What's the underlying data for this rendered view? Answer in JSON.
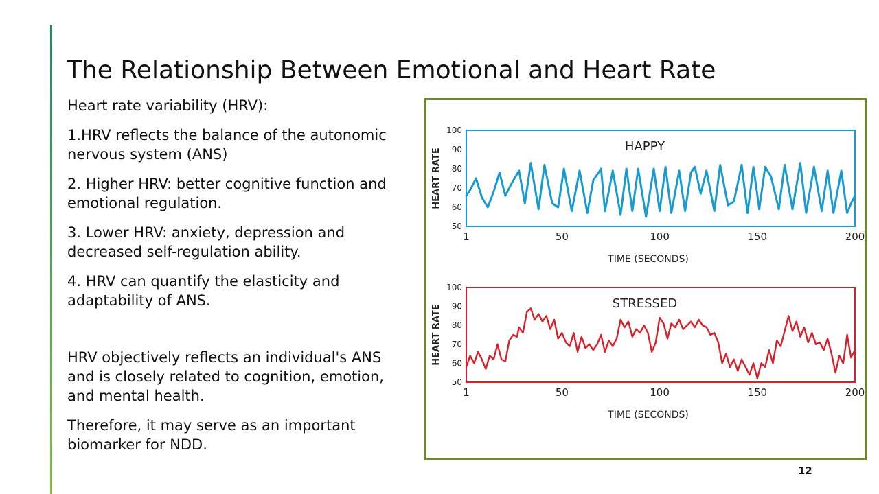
{
  "slide": {
    "title": "The Relationship Between Emotional and Heart Rate",
    "page_number": "12",
    "accent_colors": [
      "#1f8a6a",
      "#7fbf3a"
    ],
    "frame_color": "#6a8a2a"
  },
  "content": {
    "heading": "Heart rate variability (HRV):",
    "points": [
      "1.HRV reflects the balance of the autonomic nervous system (ANS)",
      "2. Higher HRV: better cognitive function and emotional regulation.",
      "3. Lower HRV: anxiety, depression and decreased self-regulation ability.",
      "4. HRV can quantify the elasticity and adaptability of ANS."
    ],
    "summary": [
      "HRV objectively reflects an individual's ANS and is closely related to cognition, emotion, and mental health.",
      "Therefore, it may serve as an important biomarker for NDD."
    ]
  },
  "chart_data": [
    {
      "type": "line",
      "title": "HAPPY",
      "xlabel": "TIME (SECONDS)",
      "ylabel": "HEART RATE",
      "xlim": [
        1,
        200
      ],
      "ylim": [
        50,
        100
      ],
      "xticks": [
        "1",
        "50",
        "100",
        "150",
        "200"
      ],
      "yticks": [
        "100",
        "90",
        "80",
        "70",
        "60",
        "50"
      ],
      "color": "#1a9bd0",
      "x": [
        1,
        3,
        6,
        9,
        12,
        15,
        18,
        21,
        24,
        28,
        31,
        34,
        38,
        41,
        45,
        48,
        51,
        55,
        59,
        63,
        66,
        70,
        72,
        76,
        80,
        83,
        86,
        89,
        93,
        97,
        100,
        103,
        106,
        110,
        113,
        116,
        118,
        121,
        124,
        128,
        131,
        135,
        138,
        142,
        145,
        148,
        151,
        154,
        157,
        161,
        164,
        168,
        172,
        175,
        179,
        183,
        186,
        189,
        193,
        196,
        198,
        200
      ],
      "y": [
        66,
        69,
        75,
        65,
        60,
        68,
        78,
        66,
        72,
        79,
        62,
        83,
        59,
        82,
        62,
        60,
        80,
        58,
        79,
        57,
        74,
        80,
        58,
        79,
        56,
        80,
        58,
        80,
        55,
        80,
        58,
        81,
        57,
        79,
        58,
        78,
        81,
        67,
        79,
        58,
        82,
        61,
        63,
        82,
        57,
        81,
        59,
        81,
        76,
        59,
        82,
        59,
        83,
        57,
        81,
        58,
        79,
        57,
        79,
        57,
        62,
        66
      ]
    },
    {
      "type": "line",
      "title": "STRESSED",
      "xlabel": "TIME (SECONDS)",
      "ylabel": "HEART RATE",
      "xlim": [
        1,
        200
      ],
      "ylim": [
        50,
        100
      ],
      "xticks": [
        "1",
        "50",
        "100",
        "150",
        "200"
      ],
      "yticks": [
        "100",
        "90",
        "80",
        "70",
        "60",
        "50"
      ],
      "color": "#d8202a",
      "x": [
        1,
        3,
        5,
        7,
        9,
        11,
        13,
        15,
        17,
        19,
        21,
        23,
        25,
        27,
        28,
        30,
        32,
        34,
        36,
        38,
        40,
        42,
        44,
        46,
        48,
        50,
        52,
        54,
        56,
        58,
        60,
        62,
        64,
        66,
        68,
        70,
        72,
        74,
        76,
        78,
        80,
        82,
        84,
        86,
        88,
        90,
        92,
        94,
        96,
        98,
        100,
        102,
        104,
        106,
        108,
        110,
        112,
        114,
        116,
        118,
        120,
        122,
        124,
        126,
        128,
        130,
        132,
        134,
        136,
        138,
        140,
        142,
        144,
        146,
        148,
        150,
        152,
        154,
        156,
        158,
        160,
        162,
        164,
        166,
        168,
        170,
        172,
        174,
        176,
        178,
        180,
        182,
        184,
        186,
        188,
        190,
        192,
        194,
        196,
        198,
        200
      ],
      "y": [
        58,
        64,
        60,
        66,
        62,
        57,
        64,
        62,
        70,
        62,
        61,
        72,
        75,
        74,
        79,
        76,
        87,
        89,
        83,
        86,
        82,
        85,
        78,
        83,
        73,
        76,
        71,
        69,
        76,
        66,
        74,
        68,
        70,
        67,
        70,
        75,
        66,
        72,
        69,
        73,
        83,
        79,
        82,
        74,
        78,
        76,
        80,
        76,
        66,
        71,
        84,
        81,
        73,
        81,
        79,
        83,
        78,
        80,
        82,
        79,
        83,
        80,
        79,
        75,
        76,
        71,
        60,
        65,
        58,
        62,
        56,
        62,
        58,
        54,
        60,
        52,
        60,
        58,
        67,
        60,
        72,
        69,
        77,
        85,
        77,
        82,
        74,
        79,
        71,
        76,
        70,
        71,
        67,
        73,
        65,
        55,
        64,
        60,
        75,
        63,
        67
      ]
    }
  ]
}
